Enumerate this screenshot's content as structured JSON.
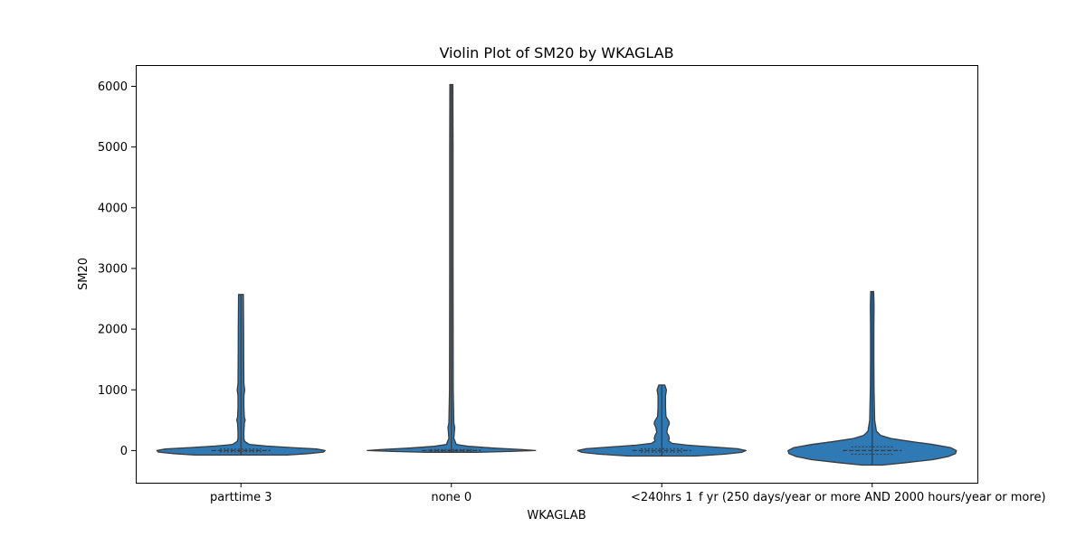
{
  "chart_data": {
    "type": "violin",
    "title": "Violin Plot of SM20 by WKAGLAB",
    "xlabel": "WKAGLAB",
    "ylabel": "SM20",
    "categories": [
      "parttime 3",
      "none 0",
      "<240hrs 1",
      "f yr (250 days/year or more AND 2000 hours/year or more)"
    ],
    "ylim": [
      -530,
      6350
    ],
    "yticks": [
      0,
      1000,
      2000,
      3000,
      4000,
      5000,
      6000
    ],
    "grid": false,
    "fill_color": "#2f79b5",
    "edge_color": "#3a3a3a",
    "violins": [
      {
        "category": "parttime 3",
        "min": -75,
        "max": 2570,
        "median": 0,
        "q1": -20,
        "q3": 25,
        "profile": [
          [
            -75,
            0.55
          ],
          [
            -50,
            0.8
          ],
          [
            -25,
            0.98
          ],
          [
            0,
            1.0
          ],
          [
            25,
            0.9
          ],
          [
            50,
            0.6
          ],
          [
            75,
            0.3
          ],
          [
            100,
            0.1
          ],
          [
            150,
            0.045
          ],
          [
            200,
            0.035
          ],
          [
            300,
            0.035
          ],
          [
            450,
            0.04
          ],
          [
            500,
            0.05
          ],
          [
            550,
            0.04
          ],
          [
            700,
            0.035
          ],
          [
            900,
            0.035
          ],
          [
            1000,
            0.045
          ],
          [
            1100,
            0.035
          ],
          [
            1500,
            0.033
          ],
          [
            2000,
            0.032
          ],
          [
            2570,
            0.028
          ]
        ]
      },
      {
        "category": "none 0",
        "min": -30,
        "max": 6030,
        "median": 0,
        "q1": -10,
        "q3": 15,
        "profile": [
          [
            -30,
            0.3
          ],
          [
            -15,
            0.7
          ],
          [
            0,
            1.0
          ],
          [
            15,
            0.85
          ],
          [
            40,
            0.5
          ],
          [
            70,
            0.2
          ],
          [
            100,
            0.06
          ],
          [
            200,
            0.03
          ],
          [
            300,
            0.035
          ],
          [
            380,
            0.04
          ],
          [
            450,
            0.03
          ],
          [
            1000,
            0.022
          ],
          [
            3000,
            0.02
          ],
          [
            5000,
            0.02
          ],
          [
            6030,
            0.018
          ]
        ]
      },
      {
        "category": "<240hrs 1",
        "min": -90,
        "max": 1080,
        "median": 0,
        "q1": -25,
        "q3": 30,
        "profile": [
          [
            -90,
            0.4
          ],
          [
            -60,
            0.75
          ],
          [
            -30,
            0.95
          ],
          [
            0,
            1.0
          ],
          [
            30,
            0.9
          ],
          [
            60,
            0.6
          ],
          [
            90,
            0.3
          ],
          [
            120,
            0.12
          ],
          [
            160,
            0.08
          ],
          [
            200,
            0.09
          ],
          [
            250,
            0.08
          ],
          [
            300,
            0.06
          ],
          [
            380,
            0.07
          ],
          [
            440,
            0.09
          ],
          [
            480,
            0.085
          ],
          [
            560,
            0.05
          ],
          [
            700,
            0.045
          ],
          [
            900,
            0.045
          ],
          [
            1000,
            0.055
          ],
          [
            1080,
            0.035
          ]
        ]
      },
      {
        "category": "f yr (250 days/year or more AND 2000 hours/year or more)",
        "min": -240,
        "max": 2620,
        "median": 0,
        "q1": -60,
        "q3": 60,
        "profile": [
          [
            -240,
            0.12
          ],
          [
            -200,
            0.4
          ],
          [
            -150,
            0.72
          ],
          [
            -100,
            0.9
          ],
          [
            -50,
            0.99
          ],
          [
            0,
            1.0
          ],
          [
            50,
            0.93
          ],
          [
            100,
            0.72
          ],
          [
            150,
            0.45
          ],
          [
            200,
            0.22
          ],
          [
            250,
            0.1
          ],
          [
            320,
            0.05
          ],
          [
            500,
            0.03
          ],
          [
            1000,
            0.022
          ],
          [
            1500,
            0.02
          ],
          [
            2000,
            0.02
          ],
          [
            2400,
            0.022
          ],
          [
            2620,
            0.018
          ]
        ]
      }
    ]
  }
}
